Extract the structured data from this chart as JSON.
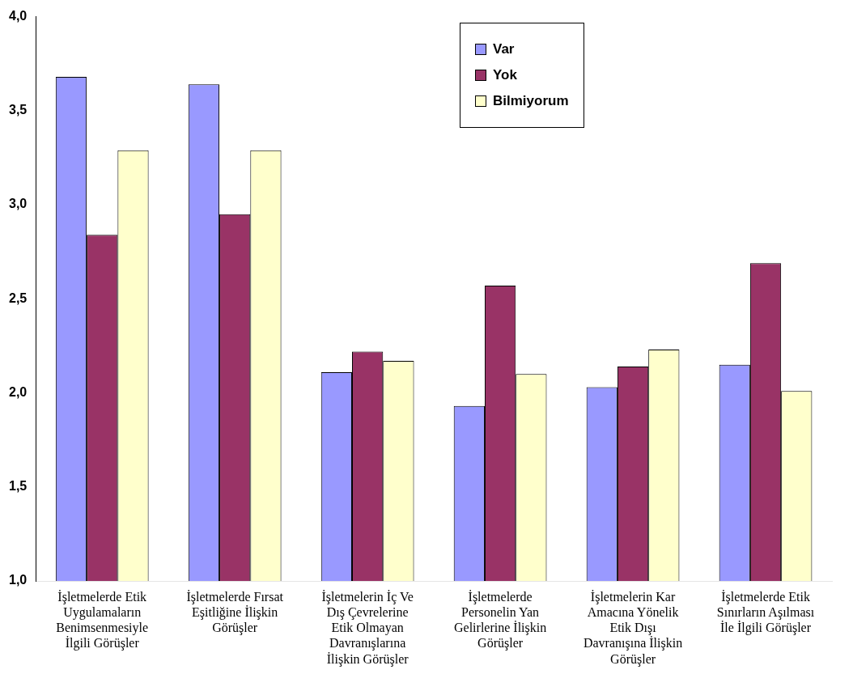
{
  "chart_data": {
    "type": "bar",
    "categories": [
      "İşletmelerde Etik Uygulamaların Benimsenmesiyle İlgili Görüşler",
      "İşletmelerde Fırsat Eşitliğine İlişkin Görüşler",
      "İşletmelerin İç Ve Dış Çevrelerine Etik Olmayan Davranışlarına İlişkin Görüşler",
      "İşletmelerde Personelin Yan Gelirlerine İlişkin Görüşler",
      "İşletmelerin Kar Amacına Yönelik Etik Dışı Davranışına İlişkin Görüşler",
      "İşletmelerde Etik Sınırların Aşılması İle İlgili Görüşler"
    ],
    "series": [
      {
        "name": "Var",
        "color": "#9999ff",
        "values": [
          3.68,
          3.64,
          2.11,
          1.93,
          2.03,
          2.15
        ]
      },
      {
        "name": "Yok",
        "color": "#993366",
        "values": [
          2.84,
          2.95,
          2.22,
          2.57,
          2.14,
          2.69
        ]
      },
      {
        "name": "Bilmiyorum",
        "color": "#ffffcc",
        "values": [
          3.29,
          3.29,
          2.17,
          2.1,
          2.23,
          2.01
        ]
      }
    ],
    "ylim": [
      1,
      4
    ],
    "yticks": [
      {
        "value": 1,
        "label": "1,0"
      },
      {
        "value": 1.5,
        "label": "1,5"
      },
      {
        "value": 2,
        "label": "2,0"
      },
      {
        "value": 2.5,
        "label": "2,5"
      },
      {
        "value": 3,
        "label": "3,0"
      },
      {
        "value": 3.5,
        "label": "3,5"
      },
      {
        "value": 4,
        "label": "4,0"
      }
    ],
    "grid": false,
    "legend": "top right"
  }
}
